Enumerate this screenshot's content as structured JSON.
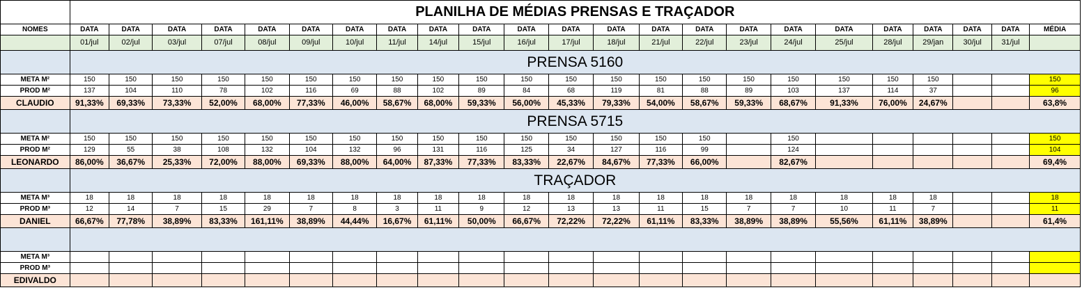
{
  "title": "PLANILHA DE MÉDIAS PRENSAS E TRAÇADOR",
  "header": {
    "names_label": "NOMES",
    "date_label": "DATA",
    "avg_label": "MÉDIA",
    "dates": [
      "01/jul",
      "02/jul",
      "03/jul",
      "07/jul",
      "08/jul",
      "09/jul",
      "10/jul",
      "11/jul",
      "14/jul",
      "15/jul",
      "16/jul",
      "17/jul",
      "18/jul",
      "21/jul",
      "22/jul",
      "23/jul",
      "24/jul",
      "25/jul",
      "28/jul",
      "29/jan",
      "30/jul",
      "31/jul"
    ]
  },
  "sections": [
    {
      "title": "PRENSA 5160",
      "meta_label": "META M²",
      "prod_label": "PROD M²",
      "person": "CLAUDIO",
      "meta": [
        "150",
        "150",
        "150",
        "150",
        "150",
        "150",
        "150",
        "150",
        "150",
        "150",
        "150",
        "150",
        "150",
        "150",
        "150",
        "150",
        "150",
        "150",
        "150",
        "150",
        "",
        ""
      ],
      "prod": [
        "137",
        "104",
        "110",
        "78",
        "102",
        "116",
        "69",
        "88",
        "102",
        "89",
        "84",
        "68",
        "119",
        "81",
        "88",
        "89",
        "103",
        "137",
        "114",
        "37",
        "",
        ""
      ],
      "pct": [
        "91,33%",
        "69,33%",
        "73,33%",
        "52,00%",
        "68,00%",
        "77,33%",
        "46,00%",
        "58,67%",
        "68,00%",
        "59,33%",
        "56,00%",
        "45,33%",
        "79,33%",
        "54,00%",
        "58,67%",
        "59,33%",
        "68,67%",
        "91,33%",
        "76,00%",
        "24,67%",
        "",
        ""
      ],
      "avg_meta": "150",
      "avg_prod": "96",
      "avg_pct": "63,8%"
    },
    {
      "title": "PRENSA 5715",
      "meta_label": "META M²",
      "prod_label": "PROD M²",
      "person": "LEONARDO",
      "meta": [
        "150",
        "150",
        "150",
        "150",
        "150",
        "150",
        "150",
        "150",
        "150",
        "150",
        "150",
        "150",
        "150",
        "150",
        "150",
        "",
        "150",
        "",
        "",
        "",
        "",
        ""
      ],
      "prod": [
        "129",
        "55",
        "38",
        "108",
        "132",
        "104",
        "132",
        "96",
        "131",
        "116",
        "125",
        "34",
        "127",
        "116",
        "99",
        "",
        "124",
        "",
        "",
        "",
        "",
        ""
      ],
      "pct": [
        "86,00%",
        "36,67%",
        "25,33%",
        "72,00%",
        "88,00%",
        "69,33%",
        "88,00%",
        "64,00%",
        "87,33%",
        "77,33%",
        "83,33%",
        "22,67%",
        "84,67%",
        "77,33%",
        "66,00%",
        "",
        "82,67%",
        "",
        "",
        "",
        "",
        ""
      ],
      "avg_meta": "150",
      "avg_prod": "104",
      "avg_pct": "69,4%"
    },
    {
      "title": "TRAÇADOR",
      "meta_label": "META M³",
      "prod_label": "PROD M³",
      "person": "DANIEL",
      "meta": [
        "18",
        "18",
        "18",
        "18",
        "18",
        "18",
        "18",
        "18",
        "18",
        "18",
        "18",
        "18",
        "18",
        "18",
        "18",
        "18",
        "18",
        "18",
        "18",
        "18",
        "",
        ""
      ],
      "prod": [
        "12",
        "14",
        "7",
        "15",
        "29",
        "7",
        "8",
        "3",
        "11",
        "9",
        "12",
        "13",
        "13",
        "11",
        "15",
        "7",
        "7",
        "10",
        "11",
        "7",
        "",
        ""
      ],
      "pct": [
        "66,67%",
        "77,78%",
        "38,89%",
        "83,33%",
        "161,11%",
        "38,89%",
        "44,44%",
        "16,67%",
        "61,11%",
        "50,00%",
        "66,67%",
        "72,22%",
        "72,22%",
        "61,11%",
        "83,33%",
        "38,89%",
        "38,89%",
        "55,56%",
        "61,11%",
        "38,89%",
        "",
        ""
      ],
      "avg_meta": "18",
      "avg_prod": "11",
      "avg_pct": "61,4%"
    },
    {
      "title": "",
      "meta_label": "META M³",
      "prod_label": "PROD M³",
      "person": "EDIVALDO",
      "meta": [
        "",
        "",
        "",
        "",
        "",
        "",
        "",
        "",
        "",
        "",
        "",
        "",
        "",
        "",
        "",
        "",
        "",
        "",
        "",
        "",
        "",
        ""
      ],
      "prod": [
        "",
        "",
        "",
        "",
        "",
        "",
        "",
        "",
        "",
        "",
        "",
        "",
        "",
        "",
        "",
        "",
        "",
        "",
        "",
        "",
        "",
        ""
      ],
      "pct": [
        "",
        "",
        "",
        "",
        "",
        "",
        "",
        "",
        "",
        "",
        "",
        "",
        "",
        "",
        "",
        "",
        "",
        "",
        "",
        "",
        "",
        ""
      ],
      "avg_meta": "",
      "avg_prod": "",
      "avg_pct": ""
    }
  ],
  "colors": {
    "section_bg": "#dce6f1",
    "date_row_bg": "#e2efda",
    "percent_row_bg": "#fce4d6",
    "average_highlight": "#ffff00"
  }
}
